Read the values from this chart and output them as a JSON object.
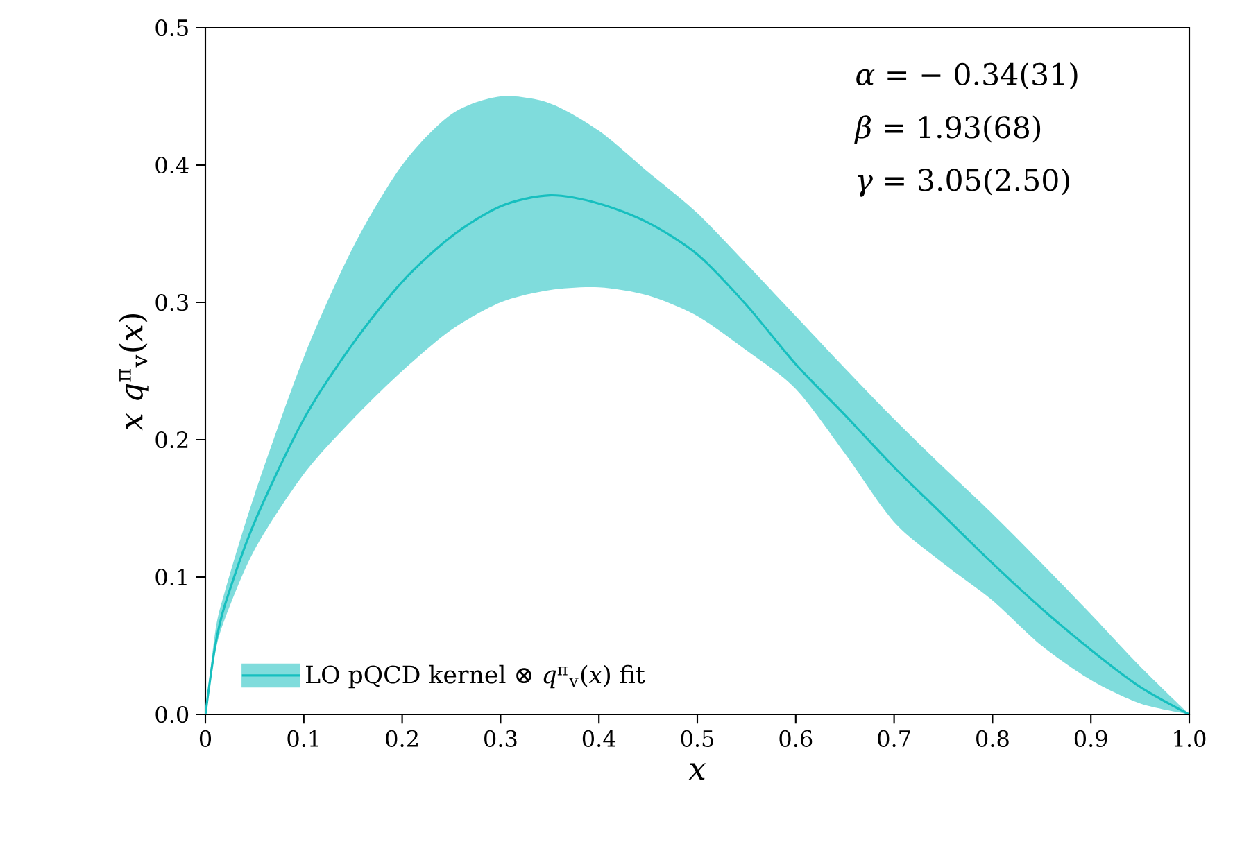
{
  "chart_data": {
    "type": "line",
    "xlabel": "*x*",
    "ylabel": "*x* *q*$^{π}$$_{v}$(*x*)",
    "x": [
      0,
      0.01,
      0.02,
      0.05,
      0.1,
      0.15,
      0.2,
      0.25,
      0.3,
      0.35,
      0.4,
      0.45,
      0.5,
      0.55,
      0.6,
      0.65,
      0.7,
      0.75,
      0.8,
      0.85,
      0.9,
      0.95,
      1.0
    ],
    "series": [
      {
        "name": "LO pQCD kernel ⊗ *q*$^{π}$$_{v}$(*x*) fit",
        "color": "#17bfbf",
        "values": [
          0,
          0.05,
          0.08,
          0.14,
          0.215,
          0.27,
          0.315,
          0.348,
          0.37,
          0.378,
          0.372,
          0.358,
          0.335,
          0.298,
          0.255,
          0.218,
          0.18,
          0.145,
          0.11,
          0.077,
          0.047,
          0.02,
          0
        ],
        "upper": [
          0,
          0.06,
          0.09,
          0.16,
          0.26,
          0.34,
          0.4,
          0.437,
          0.45,
          0.445,
          0.425,
          0.395,
          0.365,
          0.328,
          0.29,
          0.252,
          0.215,
          0.18,
          0.146,
          0.11,
          0.073,
          0.035,
          0
        ],
        "lower": [
          0,
          0.045,
          0.07,
          0.12,
          0.175,
          0.215,
          0.25,
          0.28,
          0.3,
          0.309,
          0.311,
          0.305,
          0.29,
          0.265,
          0.237,
          0.19,
          0.14,
          0.11,
          0.083,
          0.05,
          0.025,
          0.008,
          0
        ]
      }
    ],
    "xlim": [
      0,
      1.0
    ],
    "ylim": [
      0,
      0.5
    ],
    "xticks": [
      {
        "value": 0,
        "label": "0"
      },
      0.1,
      0.2,
      0.3,
      0.4,
      0.5,
      0.6,
      0.7,
      0.8,
      0.9,
      {
        "value": 1.0,
        "label": "1.0"
      }
    ],
    "yticks": [
      {
        "value": 0.0,
        "label": "0.0"
      },
      0.1,
      0.2,
      0.3,
      0.4,
      0.5
    ],
    "legend": "bottom left",
    "grid": false,
    "annotations": [
      "*α* = − 0.34(31)",
      "*β* = 1.93(68)",
      "*γ* = 3.05(2.50)"
    ]
  }
}
